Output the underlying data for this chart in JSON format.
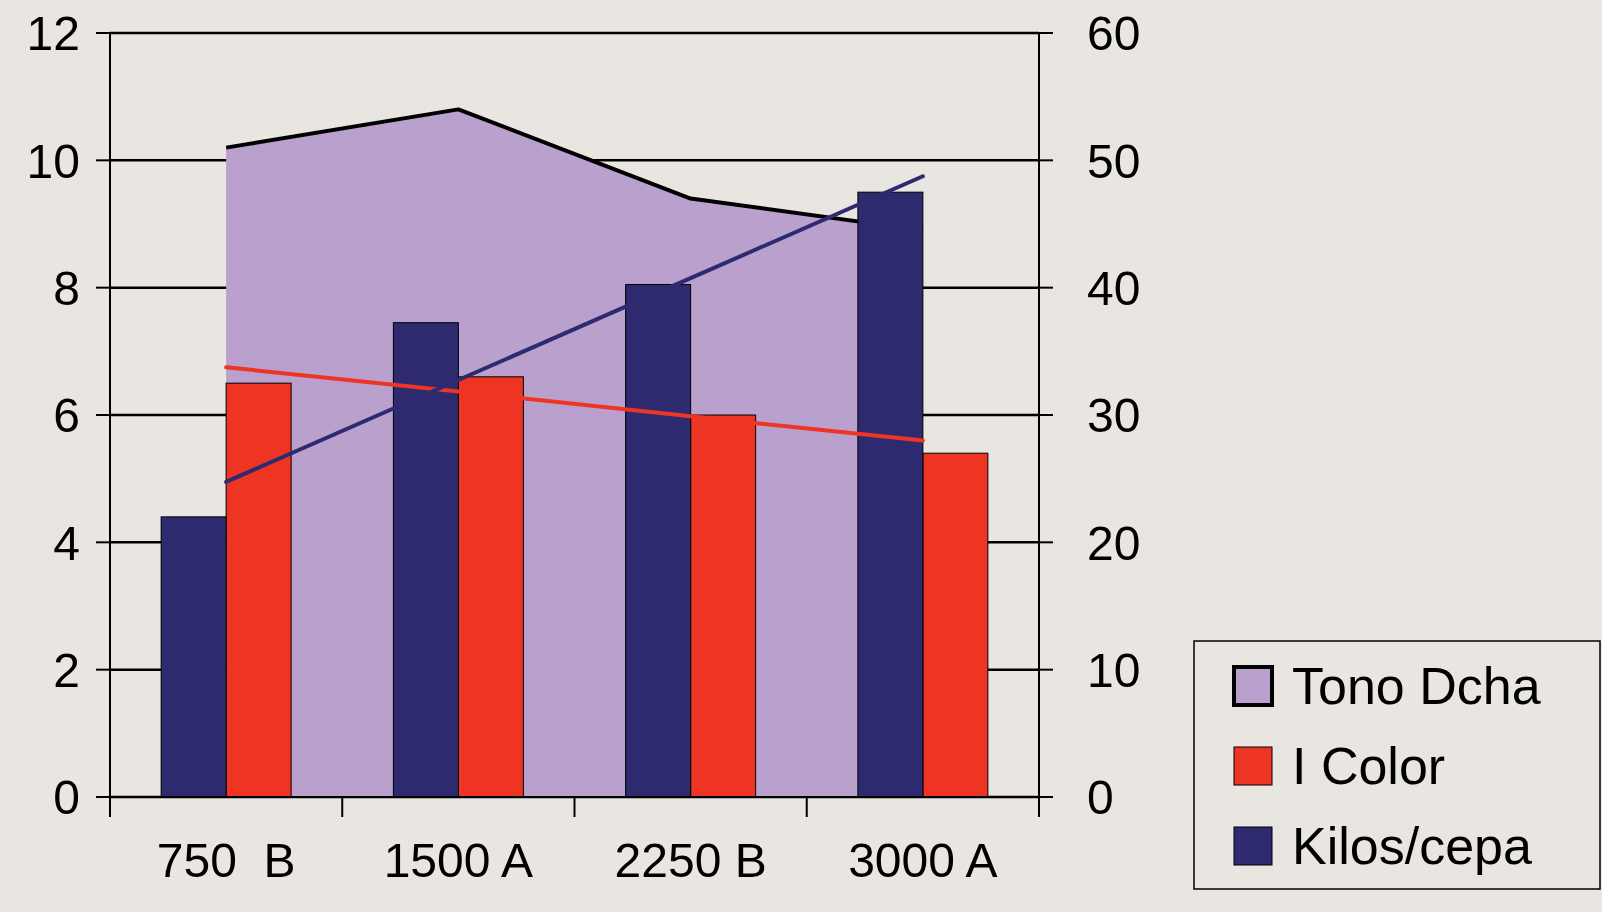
{
  "chart_data": {
    "type": "bar",
    "categories": [
      "750  B",
      "1500 A",
      "2250 B",
      "3000 A"
    ],
    "series": [
      {
        "name": "Tono Dcha",
        "type": "area",
        "color": "#b9a0cd",
        "axis": "y2",
        "values": [
          51,
          54,
          47,
          44.5
        ]
      },
      {
        "name": "I Color",
        "color": "#ee3524",
        "values": [
          6.5,
          6.6,
          6.0,
          5.4
        ]
      },
      {
        "name": "Kilos/cepa",
        "color": "#2e2a70",
        "values": [
          4.4,
          7.45,
          8.05,
          9.5
        ]
      },
      {
        "type": "line",
        "color": "#ee3524",
        "values": [
          6.75,
          6.37,
          5.98,
          5.6
        ]
      },
      {
        "type": "line",
        "color": "#2e2a70",
        "values": [
          4.95,
          6.55,
          8.15,
          9.75
        ]
      }
    ],
    "ylim": [
      0,
      12
    ],
    "yticks": [
      0,
      2,
      4,
      6,
      8,
      10,
      12
    ],
    "y2lim": [
      0,
      60
    ],
    "y2ticks": [
      0,
      10,
      20,
      30,
      40,
      50,
      60
    ],
    "grid": "y",
    "legend": "bottom right"
  }
}
